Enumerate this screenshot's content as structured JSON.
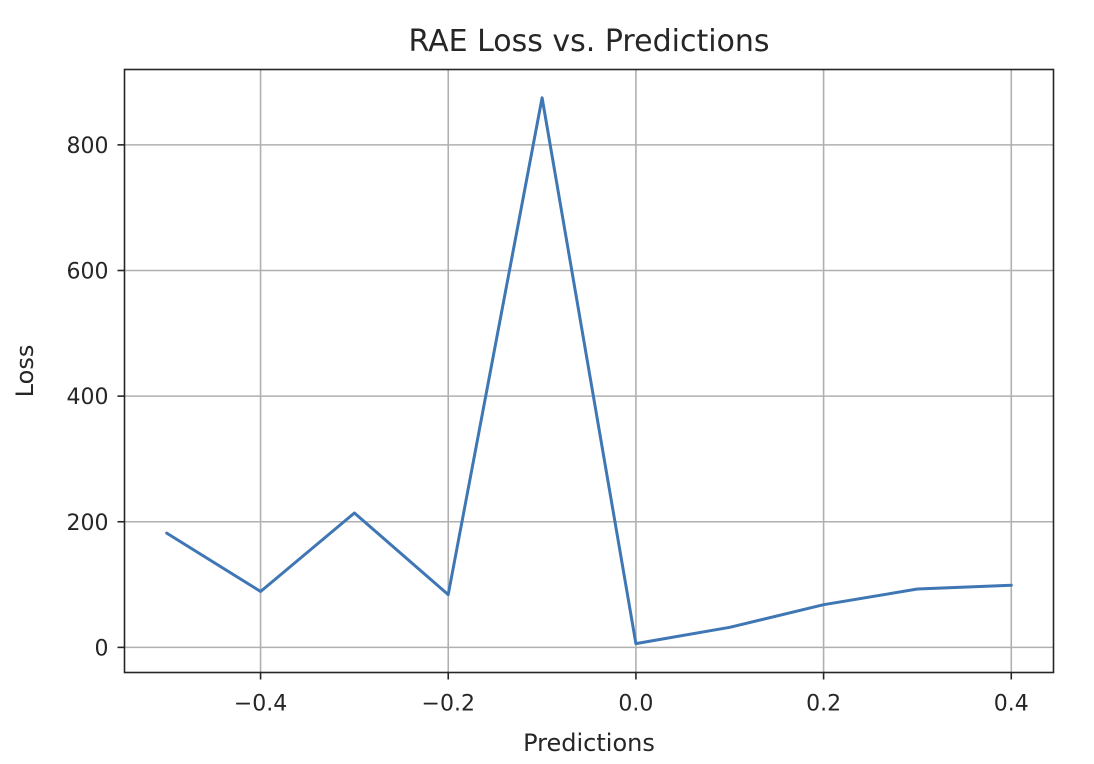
{
  "chart_data": {
    "type": "line",
    "title": "RAE Loss vs. Predictions",
    "xlabel": "Predictions",
    "ylabel": "Loss",
    "x": [
      -0.5,
      -0.4,
      -0.3,
      -0.2,
      -0.1,
      0.0,
      0.1,
      0.2,
      0.3,
      0.4
    ],
    "series": [
      {
        "values": [
          182,
          89,
          214,
          84,
          875,
          6,
          32,
          68,
          93,
          99
        ]
      }
    ],
    "xlim": [
      -0.545,
      0.445
    ],
    "ylim": [
      -40,
      920
    ],
    "xticks": [
      -0.4,
      -0.2,
      0.0,
      0.2,
      0.4
    ],
    "xtick_labels": [
      "−0.4",
      "−0.2",
      "0.0",
      "0.2",
      "0.4"
    ],
    "yticks": [
      0,
      200,
      400,
      600,
      800
    ],
    "ytick_labels": [
      "0",
      "200",
      "400",
      "600",
      "800"
    ],
    "grid": true,
    "color": "#3f76b4"
  }
}
